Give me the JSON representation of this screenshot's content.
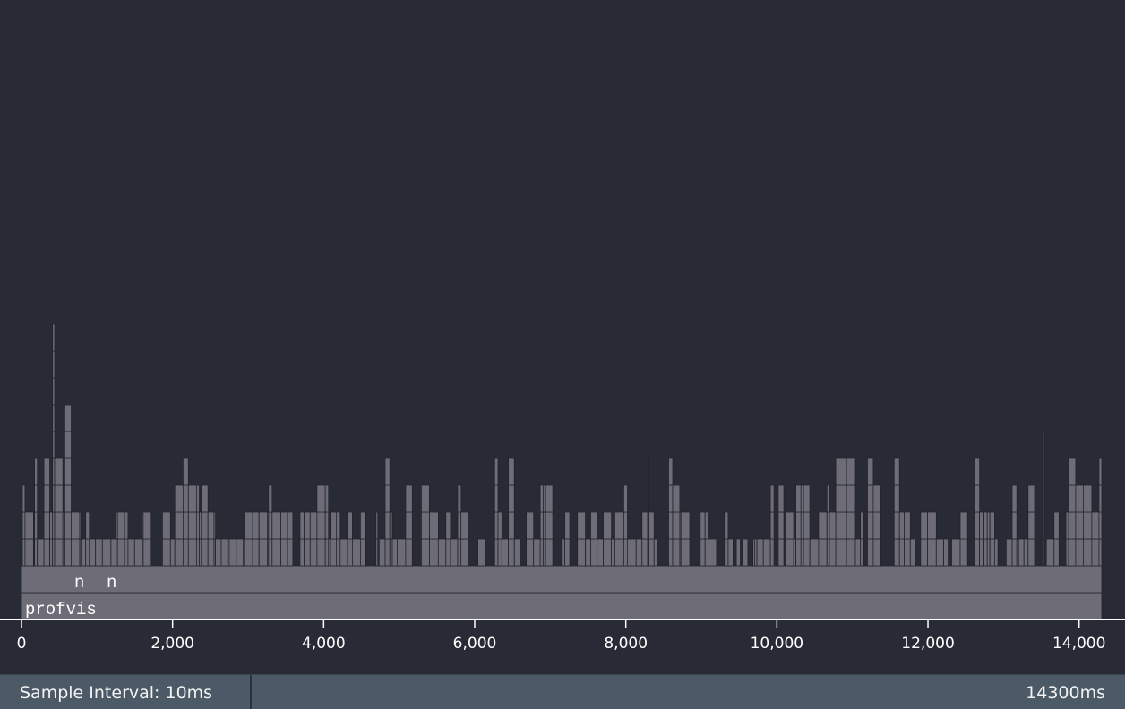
{
  "flamegraph": {
    "root_label": "profvis",
    "short_labels": [
      "n",
      "n"
    ],
    "time_axis": {
      "min": 0,
      "max": 14300,
      "ticks": [
        0,
        2000,
        4000,
        6000,
        8000,
        10000,
        12000,
        14000
      ],
      "tick_labels": [
        "0",
        "2,000",
        "4,000",
        "6,000",
        "8,000",
        "10,000",
        "12,000",
        "14,000"
      ]
    },
    "colors": {
      "background": "#282a36",
      "block_fill": "#6e6d77",
      "block_stroke": "#22232b",
      "axis": "#ffffff"
    }
  },
  "status_bar": {
    "sample_interval": "Sample Interval: 10ms",
    "total_time": "14300ms"
  }
}
